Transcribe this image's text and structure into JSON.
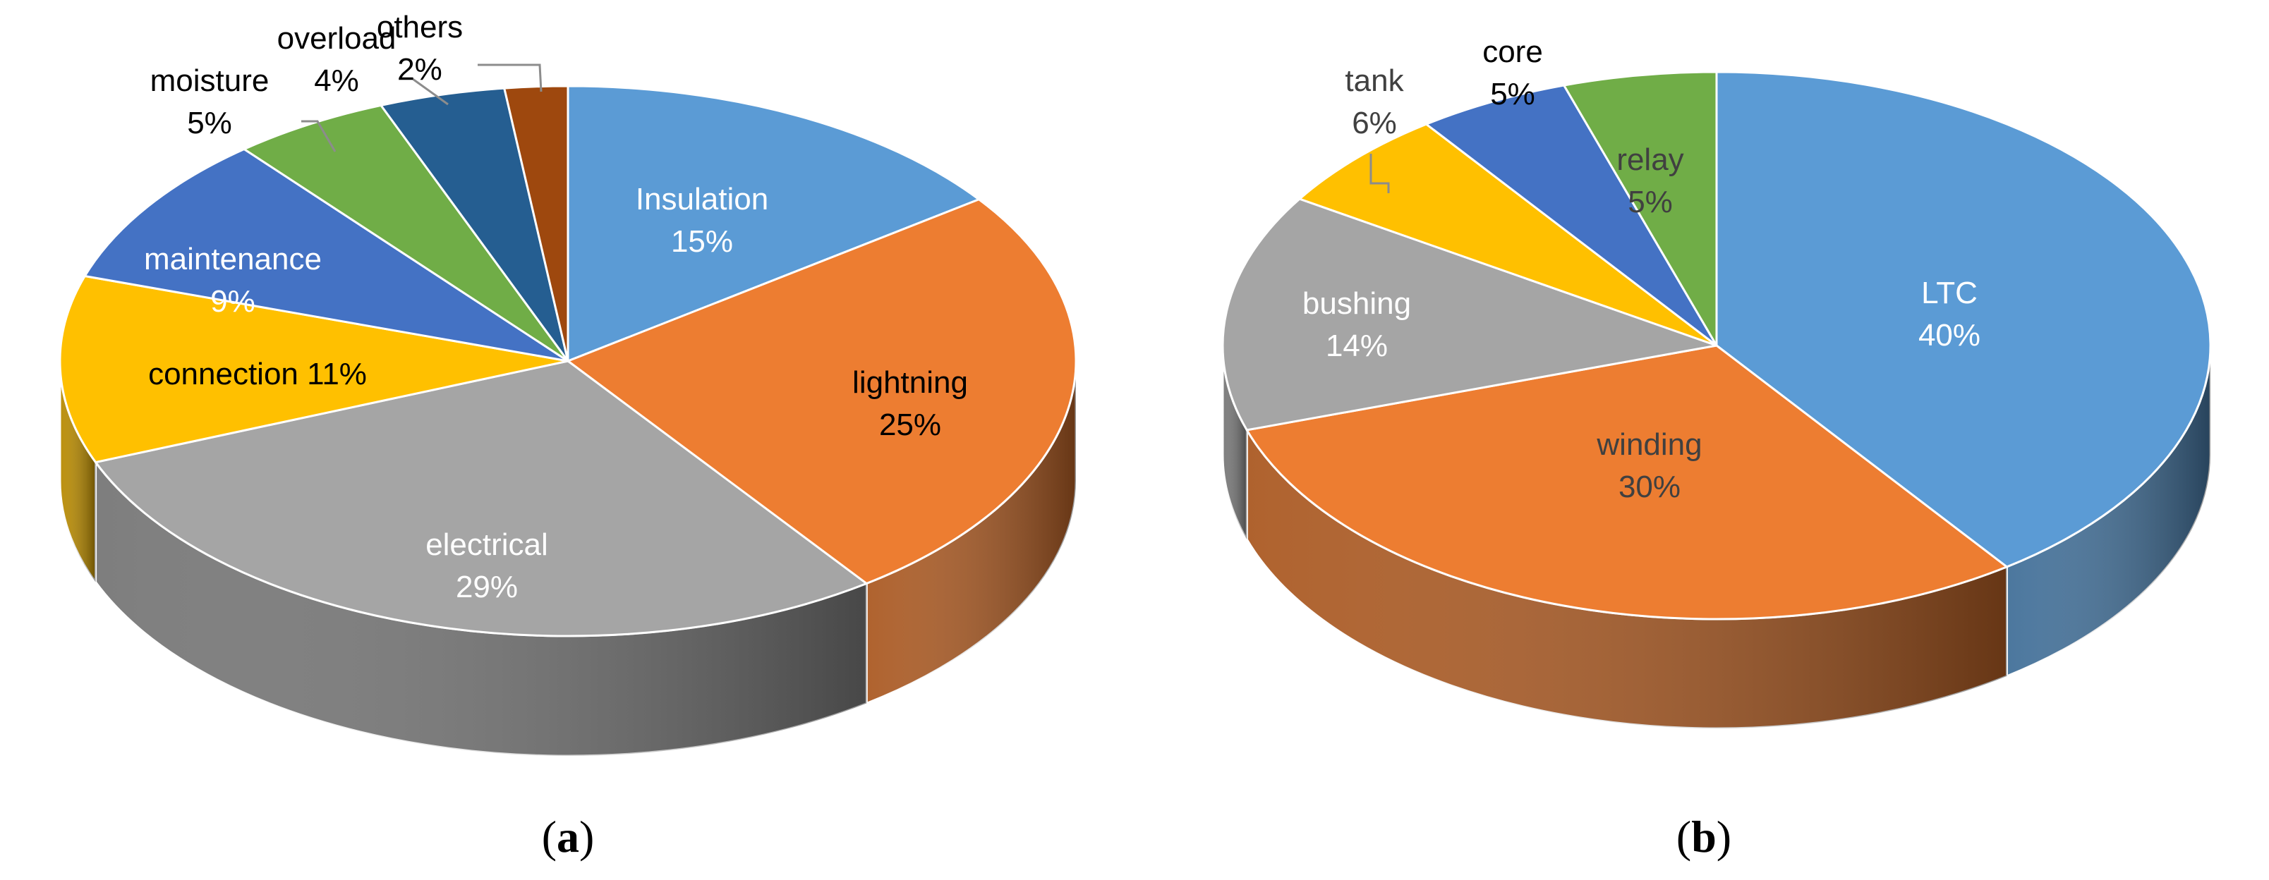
{
  "chart_data": [
    {
      "type": "pie",
      "caption": "(a)",
      "caption_letter": "a",
      "slices": [
        {
          "name": "Insulation",
          "value": 15,
          "label": "15%",
          "color": "#5b9bd5",
          "text_color": "#ffffff"
        },
        {
          "name": "lightning",
          "value": 25,
          "label": "25%",
          "color": "#ed7d31",
          "text_color": "#000000"
        },
        {
          "name": "electrical",
          "value": 29,
          "label": "29%",
          "color": "#a5a5a5",
          "text_color": "#ffffff"
        },
        {
          "name": "connection",
          "value": 11,
          "label": "11%",
          "color": "#ffc000",
          "text_color": "#000000"
        },
        {
          "name": "maintenance",
          "value": 9,
          "label": "9%",
          "color": "#4472c4",
          "text_color": "#ffffff"
        },
        {
          "name": "moisture",
          "value": 5,
          "label": "5%",
          "color": "#70ad47",
          "text_color": "#000000"
        },
        {
          "name": "overload",
          "value": 4,
          "label": "4%",
          "color": "#255e91",
          "text_color": "#000000"
        },
        {
          "name": "others",
          "value": 2,
          "label": "2%",
          "color": "#9e480e",
          "text_color": "#000000"
        }
      ]
    },
    {
      "type": "pie",
      "caption": "(b)",
      "caption_letter": "b",
      "slices": [
        {
          "name": "LTC",
          "value": 40,
          "label": "40%",
          "color": "#5b9bd5",
          "text_color": "#ffffff"
        },
        {
          "name": "winding",
          "value": 30,
          "label": "30%",
          "color": "#ed7d31",
          "text_color": "#404040"
        },
        {
          "name": "bushing",
          "value": 14,
          "label": "14%",
          "color": "#a5a5a5",
          "text_color": "#ffffff"
        },
        {
          "name": "tank",
          "value": 6,
          "label": "6%",
          "color": "#ffc000",
          "text_color": "#404040"
        },
        {
          "name": "core",
          "value": 5,
          "label": "5%",
          "color": "#4472c4",
          "text_color": "#000000"
        },
        {
          "name": "relay",
          "value": 5,
          "label": "5%",
          "color": "#70ad47",
          "text_color": "#404040"
        }
      ]
    }
  ]
}
